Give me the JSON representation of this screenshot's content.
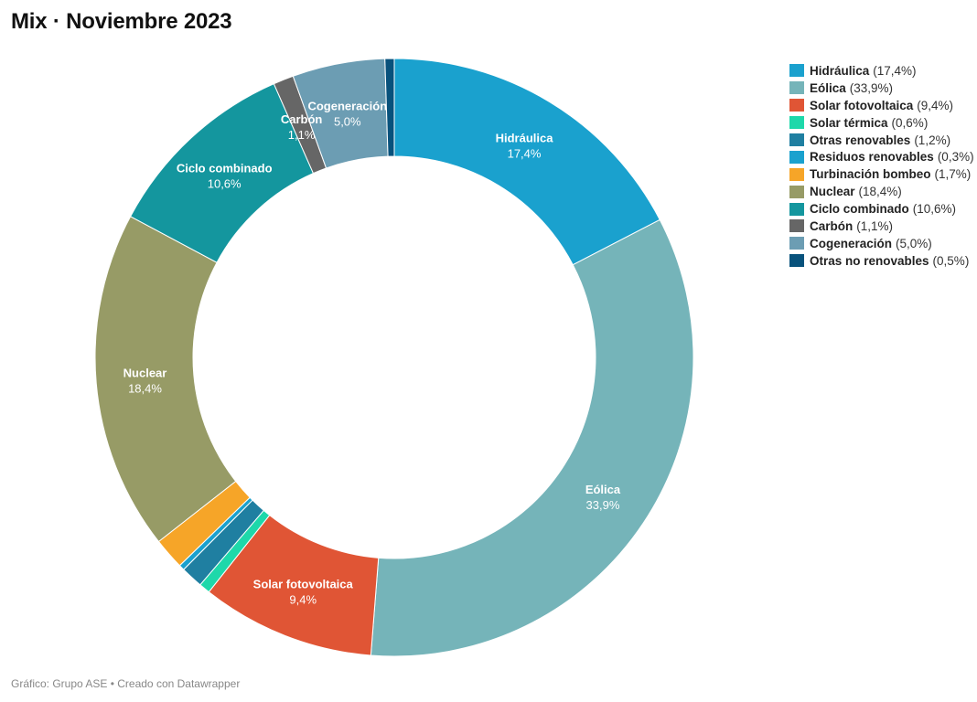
{
  "title": "Mix · Noviembre 2023",
  "source": "Gráfico: Grupo ASE • Creado con Datawrapper",
  "chart_data": {
    "type": "pie",
    "donut": true,
    "legend_position": "top-right",
    "slices": [
      {
        "name": "Hidráulica",
        "value": 17.4,
        "label": "17,4%",
        "color": "#1aa1ce",
        "show_label": true
      },
      {
        "name": "Eólica",
        "value": 33.9,
        "label": "33,9%",
        "color": "#75b4b9",
        "show_label": true
      },
      {
        "name": "Solar fotovoltaica",
        "value": 9.4,
        "label": "9,4%",
        "color": "#e05535",
        "show_label": true
      },
      {
        "name": "Solar térmica",
        "value": 0.6,
        "label": "0,6%",
        "color": "#1ed8aa",
        "show_label": false
      },
      {
        "name": "Otras renovables",
        "value": 1.2,
        "label": "1,2%",
        "color": "#1f7fa1",
        "show_label": false
      },
      {
        "name": "Residuos renovables",
        "value": 0.3,
        "label": "0,3%",
        "color": "#1aa1ce",
        "show_label": false
      },
      {
        "name": "Turbinación bombeo",
        "value": 1.7,
        "label": "1,7%",
        "color": "#f6a528",
        "show_label": false
      },
      {
        "name": "Nuclear",
        "value": 18.4,
        "label": "18,4%",
        "color": "#979b66",
        "show_label": true
      },
      {
        "name": "Ciclo combinado",
        "value": 10.6,
        "label": "10,6%",
        "color": "#14969e",
        "show_label": true
      },
      {
        "name": "Carbón",
        "value": 1.1,
        "label": "1,1%",
        "color": "#666666",
        "show_label": true
      },
      {
        "name": "Cogeneración",
        "value": 5.0,
        "label": "5,0%",
        "color": "#6c9db3",
        "show_label": true
      },
      {
        "name": "Otras no renovables",
        "value": 0.5,
        "label": "0,5%",
        "color": "#08527c",
        "show_label": false
      }
    ]
  }
}
